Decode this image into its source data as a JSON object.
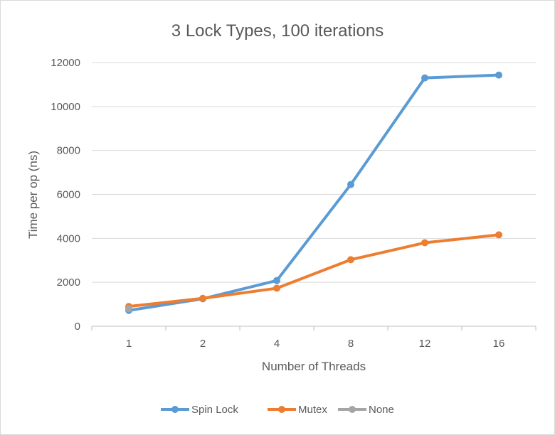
{
  "chart_data": {
    "type": "line",
    "title": "3 Lock Types, 100 iterations",
    "xlabel": "Number of Threads",
    "ylabel": "Time per op (ns)",
    "categories": [
      "1",
      "2",
      "4",
      "8",
      "12",
      "16"
    ],
    "ylim": [
      0,
      12000
    ],
    "yticks": [
      0,
      2000,
      4000,
      6000,
      8000,
      10000,
      12000
    ],
    "grid": true,
    "legend_position": "bottom",
    "series": [
      {
        "name": "Spin Lock",
        "color": "#5B9BD5",
        "values": [
          720,
          1250,
          2080,
          6450,
          11300,
          11430
        ]
      },
      {
        "name": "Mutex",
        "color": "#ED7D31",
        "values": [
          900,
          1270,
          1730,
          3030,
          3800,
          4160
        ]
      },
      {
        "name": "None",
        "color": "#A5A5A5",
        "values": [
          800,
          null,
          null,
          null,
          null,
          null
        ]
      }
    ]
  }
}
